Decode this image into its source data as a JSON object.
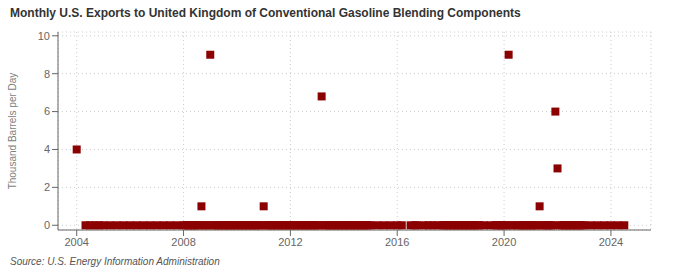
{
  "chart_data": {
    "type": "scatter",
    "title": "Monthly U.S. Exports to United Kingdom of Conventional Gasoline Blending Components",
    "y_label": "Thousand Barrels per Day",
    "annotations": [
      "Source: U.S. Energy Information Administration"
    ],
    "color": "#8b0000",
    "marker": "square",
    "grid": true,
    "xlim": [
      2003.3,
      2025.5
    ],
    "ylim": [
      -0.25,
      10.2
    ],
    "xticks": [
      2004,
      2008,
      2012,
      2016,
      2020,
      2024
    ],
    "yticks": [
      0,
      2,
      4,
      6,
      8,
      10
    ],
    "x": [
      2004.0,
      2004.33,
      2004.5,
      2004.67,
      2004.83,
      2005.0,
      2005.25,
      2005.5,
      2005.75,
      2006.0,
      2006.25,
      2006.5,
      2006.75,
      2007.0,
      2007.25,
      2007.5,
      2007.75,
      2008.0,
      2008.08,
      2008.17,
      2008.25,
      2008.33,
      2008.42,
      2008.5,
      2008.58,
      2008.67,
      2008.75,
      2008.83,
      2008.92,
      2009.0,
      2009.08,
      2009.17,
      2009.25,
      2009.33,
      2009.42,
      2009.5,
      2009.58,
      2009.67,
      2009.75,
      2009.83,
      2009.92,
      2010.0,
      2010.08,
      2010.17,
      2010.25,
      2010.33,
      2010.42,
      2010.5,
      2010.58,
      2010.67,
      2010.75,
      2010.83,
      2010.92,
      2011.0,
      2011.08,
      2011.17,
      2011.25,
      2011.33,
      2011.42,
      2011.5,
      2011.58,
      2011.67,
      2011.75,
      2011.83,
      2011.92,
      2012.0,
      2012.08,
      2012.17,
      2012.25,
      2012.33,
      2012.42,
      2012.5,
      2012.58,
      2012.67,
      2012.75,
      2012.83,
      2012.92,
      2013.0,
      2013.08,
      2013.17,
      2013.25,
      2013.33,
      2013.42,
      2013.5,
      2013.58,
      2013.67,
      2013.75,
      2013.83,
      2013.92,
      2014.0,
      2014.08,
      2014.17,
      2014.25,
      2014.33,
      2014.42,
      2014.5,
      2014.58,
      2014.67,
      2014.75,
      2014.83,
      2014.92,
      2015.0,
      2015.25,
      2015.5,
      2015.75,
      2016.0,
      2016.17,
      2016.5,
      2016.67,
      2016.75,
      2017.0,
      2017.17,
      2017.33,
      2017.5,
      2017.67,
      2017.75,
      2017.83,
      2017.92,
      2018.0,
      2018.08,
      2018.17,
      2018.25,
      2018.33,
      2018.42,
      2018.5,
      2018.58,
      2018.67,
      2018.75,
      2018.83,
      2018.92,
      2019.0,
      2019.08,
      2019.25,
      2019.5,
      2019.67,
      2019.75,
      2019.83,
      2019.92,
      2020.0,
      2020.08,
      2020.17,
      2020.25,
      2020.33,
      2020.5,
      2020.58,
      2020.67,
      2020.75,
      2020.83,
      2020.92,
      2021.0,
      2021.08,
      2021.17,
      2021.25,
      2021.33,
      2021.42,
      2021.5,
      2021.58,
      2021.67,
      2021.75,
      2021.83,
      2021.92,
      2022.0,
      2022.08,
      2022.17,
      2022.25,
      2022.33,
      2022.42,
      2022.5,
      2022.58,
      2022.67,
      2022.75,
      2022.83,
      2022.92,
      2023.0,
      2023.25,
      2023.5,
      2023.75,
      2024.0,
      2024.25,
      2024.5
    ],
    "values": [
      4.0,
      0.0,
      0.0,
      0.0,
      0.0,
      0.0,
      0.0,
      0.0,
      0.0,
      0.0,
      0.0,
      0.0,
      0.0,
      0.0,
      0.0,
      0.0,
      0.0,
      0.0,
      0.0,
      0.0,
      0.0,
      0.0,
      0.0,
      0.0,
      0.0,
      1.0,
      0.0,
      0.0,
      0.0,
      9.0,
      0.0,
      0.0,
      0.0,
      0.0,
      0.0,
      0.0,
      0.0,
      0.0,
      0.0,
      0.0,
      0.0,
      0.0,
      0.0,
      0.0,
      0.0,
      0.0,
      0.0,
      0.0,
      0.0,
      0.0,
      0.0,
      0.0,
      0.0,
      1.0,
      0.0,
      0.0,
      0.0,
      0.0,
      0.0,
      0.0,
      0.0,
      0.0,
      0.0,
      0.0,
      0.0,
      0.0,
      0.0,
      0.0,
      0.0,
      0.0,
      0.0,
      0.0,
      0.0,
      0.0,
      0.0,
      0.0,
      0.0,
      0.0,
      0.0,
      6.8,
      0.0,
      0.0,
      0.0,
      0.0,
      0.0,
      0.0,
      0.0,
      0.0,
      0.0,
      0.0,
      0.0,
      0.0,
      0.0,
      0.0,
      0.0,
      0.0,
      0.0,
      0.0,
      0.0,
      0.0,
      0.0,
      0.0,
      0.0,
      0.0,
      0.0,
      0.0,
      0.0,
      0.0,
      0.0,
      0.0,
      0.0,
      0.0,
      0.0,
      0.0,
      0.0,
      0.0,
      0.0,
      0.0,
      0.0,
      0.0,
      0.0,
      0.0,
      0.0,
      0.0,
      0.0,
      0.0,
      0.0,
      0.0,
      0.0,
      0.0,
      0.0,
      0.0,
      0.0,
      0.0,
      0.0,
      0.0,
      0.0,
      0.0,
      0.0,
      0.0,
      9.0,
      0.0,
      0.0,
      0.0,
      0.0,
      0.0,
      0.0,
      0.0,
      0.0,
      0.0,
      0.0,
      0.0,
      0.0,
      1.0,
      0.0,
      0.0,
      0.0,
      0.0,
      0.0,
      0.0,
      6.0,
      3.0,
      0.0,
      0.0,
      0.0,
      0.0,
      0.0,
      0.0,
      0.0,
      0.0,
      0.0,
      0.0,
      0.0,
      0.0,
      0.0,
      0.0,
      0.0,
      0.0,
      0.0,
      0.0
    ]
  }
}
